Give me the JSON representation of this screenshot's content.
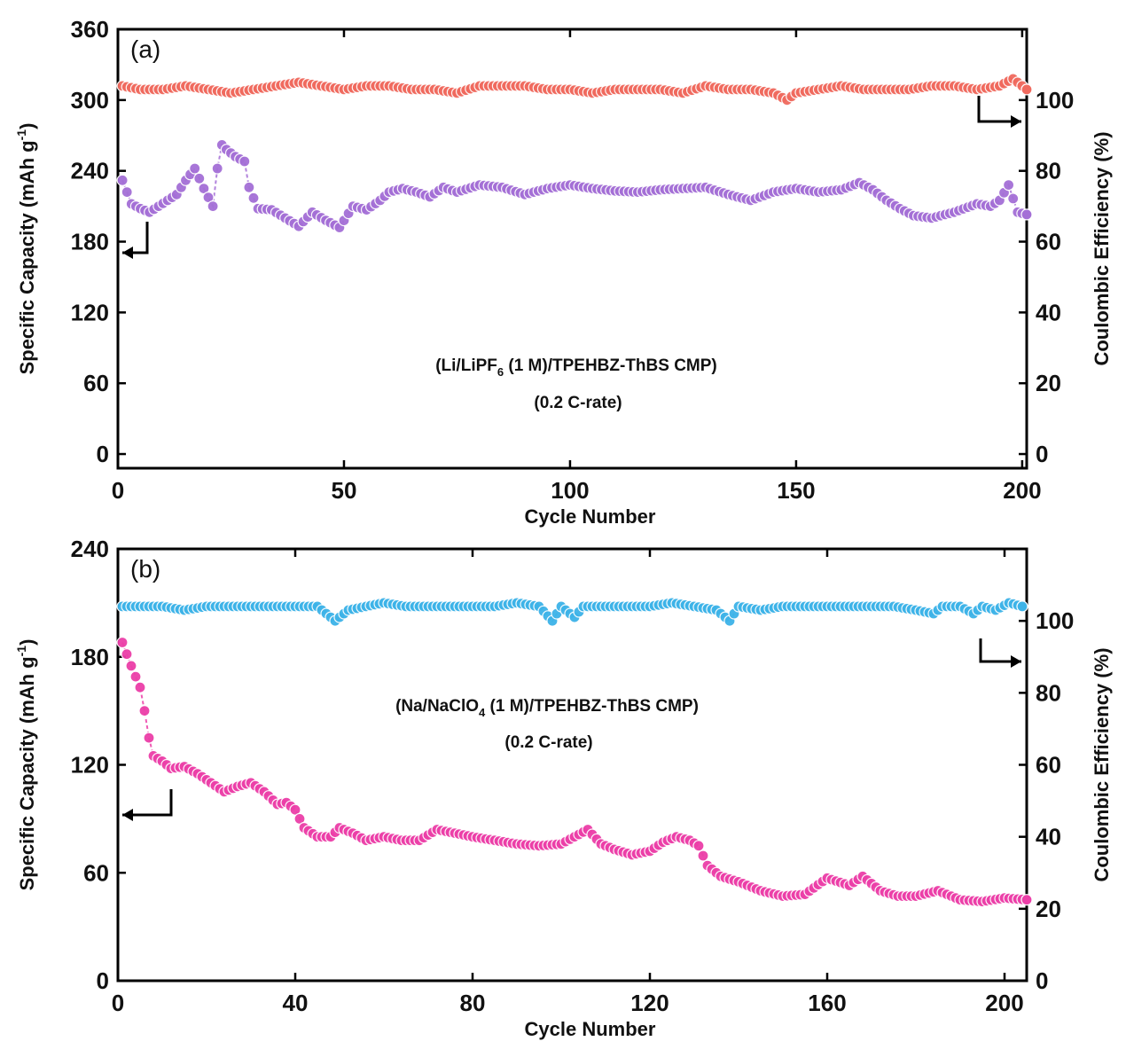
{
  "chart_data": [
    {
      "type": "scatter",
      "panel_label": "(a)",
      "xlabel": "Cycle Number",
      "ylabel": "Specific Capacity (mAh g-1)",
      "ylabel_main": "Specific Capacity (mAh g",
      "ylabel_sup": "-1",
      "ylabel_close": ")",
      "y2label": "Coulombic Efficiency (%)",
      "xlim": [
        0,
        201
      ],
      "ylim": [
        -12,
        360
      ],
      "y2lim": [
        -4,
        120
      ],
      "xticks": [
        "0",
        "50",
        "100",
        "150",
        "200"
      ],
      "yticks": [
        "0",
        "60",
        "120",
        "180",
        "240",
        "300",
        "360"
      ],
      "y2ticks": [
        "0",
        "20",
        "40",
        "60",
        "80",
        "100"
      ],
      "annotation_main": "(Li/LiPF",
      "annotation_sub": "6",
      "annotation_rest": " (1 M)/TPEHBZ-ThBS CMP)",
      "annotation_line2": "(0.2 C-rate)",
      "grid": false,
      "series": [
        {
          "axis": "left",
          "color": "#a46fd6",
          "points": [
            [
              1,
              232
            ],
            [
              3,
              212
            ],
            [
              5,
              208
            ],
            [
              7,
              205
            ],
            [
              9,
              210
            ],
            [
              11,
              215
            ],
            [
              13,
              220
            ],
            [
              15,
              232
            ],
            [
              17,
              242
            ],
            [
              19,
              225
            ],
            [
              21,
              210
            ],
            [
              22,
              242
            ],
            [
              23,
              262
            ],
            [
              24,
              258
            ],
            [
              26,
              252
            ],
            [
              28,
              248
            ],
            [
              29,
              226
            ],
            [
              31,
              208
            ],
            [
              34,
              207
            ],
            [
              37,
              200
            ],
            [
              40,
              193
            ],
            [
              43,
              205
            ],
            [
              46,
              198
            ],
            [
              49,
              192
            ],
            [
              52,
              210
            ],
            [
              55,
              207
            ],
            [
              58,
              215
            ],
            [
              60,
              222
            ],
            [
              63,
              225
            ],
            [
              66,
              222
            ],
            [
              69,
              218
            ],
            [
              72,
              226
            ],
            [
              75,
              222
            ],
            [
              80,
              228
            ],
            [
              85,
              226
            ],
            [
              90,
              220
            ],
            [
              95,
              225
            ],
            [
              100,
              228
            ],
            [
              105,
              225
            ],
            [
              110,
              223
            ],
            [
              115,
              222
            ],
            [
              120,
              224
            ],
            [
              125,
              225
            ],
            [
              130,
              226
            ],
            [
              135,
              220
            ],
            [
              140,
              215
            ],
            [
              145,
              222
            ],
            [
              150,
              225
            ],
            [
              155,
              222
            ],
            [
              160,
              224
            ],
            [
              164,
              230
            ],
            [
              167,
              224
            ],
            [
              170,
              215
            ],
            [
              173,
              208
            ],
            [
              176,
              202
            ],
            [
              180,
              200
            ],
            [
              185,
              205
            ],
            [
              190,
              212
            ],
            [
              193,
              210
            ],
            [
              195,
              215
            ],
            [
              197,
              228
            ],
            [
              199,
              205
            ],
            [
              201,
              203
            ]
          ]
        },
        {
          "axis": "right",
          "color": "#f06a5e",
          "points": [
            [
              1,
              104
            ],
            [
              5,
              103
            ],
            [
              10,
              103
            ],
            [
              15,
              104
            ],
            [
              20,
              103
            ],
            [
              25,
              102
            ],
            [
              30,
              103
            ],
            [
              35,
              104
            ],
            [
              40,
              105
            ],
            [
              45,
              104
            ],
            [
              50,
              103
            ],
            [
              55,
              104
            ],
            [
              60,
              104
            ],
            [
              65,
              103
            ],
            [
              70,
              103
            ],
            [
              75,
              102
            ],
            [
              80,
              104
            ],
            [
              85,
              104
            ],
            [
              90,
              104
            ],
            [
              95,
              103
            ],
            [
              100,
              103
            ],
            [
              105,
              102
            ],
            [
              110,
              103
            ],
            [
              115,
              103
            ],
            [
              120,
              103
            ],
            [
              125,
              102
            ],
            [
              130,
              104
            ],
            [
              135,
              103
            ],
            [
              140,
              103
            ],
            [
              145,
              102
            ],
            [
              148,
              100
            ],
            [
              150,
              102
            ],
            [
              155,
              103
            ],
            [
              160,
              104
            ],
            [
              165,
              103
            ],
            [
              170,
              103
            ],
            [
              175,
              103
            ],
            [
              180,
              104
            ],
            [
              185,
              104
            ],
            [
              190,
              103
            ],
            [
              195,
              104
            ],
            [
              198,
              106
            ],
            [
              201,
              103
            ]
          ]
        }
      ]
    },
    {
      "type": "scatter",
      "panel_label": "(b)",
      "xlabel": "Cycle Number",
      "ylabel": "Specific Capacity (mAh g-1)",
      "ylabel_main": "Specific Capacity (mAh g",
      "ylabel_sup": "-1",
      "ylabel_close": ")",
      "y2label": "Coulombic Efficiency (%)",
      "xlim": [
        0,
        205
      ],
      "ylim": [
        0,
        240
      ],
      "y2lim": [
        0,
        120
      ],
      "xticks": [
        "0",
        "40",
        "80",
        "120",
        "160",
        "200"
      ],
      "yticks": [
        "0",
        "60",
        "120",
        "180",
        "240"
      ],
      "y2ticks": [
        "0",
        "20",
        "40",
        "60",
        "80",
        "100"
      ],
      "annotation_main": "(Na/NaClO",
      "annotation_sub": "4",
      "annotation_rest": " (1 M)/TPEHBZ-ThBS CMP)",
      "annotation_line2": "(0.2 C-rate)",
      "grid": false,
      "series": [
        {
          "axis": "left",
          "color": "#ec3fa8",
          "points": [
            [
              1,
              188
            ],
            [
              3,
              175
            ],
            [
              5,
              163
            ],
            [
              6,
              150
            ],
            [
              7,
              135
            ],
            [
              8,
              125
            ],
            [
              10,
              122
            ],
            [
              12,
              118
            ],
            [
              15,
              119
            ],
            [
              18,
              115
            ],
            [
              21,
              110
            ],
            [
              24,
              105
            ],
            [
              27,
              108
            ],
            [
              30,
              110
            ],
            [
              33,
              105
            ],
            [
              36,
              98
            ],
            [
              38,
              99
            ],
            [
              40,
              95
            ],
            [
              42,
              85
            ],
            [
              45,
              80
            ],
            [
              48,
              80
            ],
            [
              50,
              85
            ],
            [
              53,
              82
            ],
            [
              56,
              78
            ],
            [
              60,
              80
            ],
            [
              64,
              78
            ],
            [
              68,
              78
            ],
            [
              72,
              84
            ],
            [
              76,
              82
            ],
            [
              80,
              80
            ],
            [
              85,
              78
            ],
            [
              90,
              76
            ],
            [
              95,
              75
            ],
            [
              100,
              76
            ],
            [
              103,
              80
            ],
            [
              106,
              84
            ],
            [
              109,
              76
            ],
            [
              112,
              73
            ],
            [
              116,
              70
            ],
            [
              120,
              72
            ],
            [
              123,
              77
            ],
            [
              126,
              80
            ],
            [
              129,
              78
            ],
            [
              131,
              75
            ],
            [
              133,
              64
            ],
            [
              136,
              58
            ],
            [
              140,
              55
            ],
            [
              145,
              50
            ],
            [
              150,
              47
            ],
            [
              155,
              48
            ],
            [
              160,
              57
            ],
            [
              165,
              53
            ],
            [
              168,
              58
            ],
            [
              172,
              50
            ],
            [
              176,
              47
            ],
            [
              180,
              47
            ],
            [
              185,
              50
            ],
            [
              190,
              45
            ],
            [
              195,
              44
            ],
            [
              200,
              46
            ],
            [
              205,
              45
            ]
          ]
        },
        {
          "axis": "right",
          "color": "#3db3e8",
          "points": [
            [
              1,
              104
            ],
            [
              5,
              104
            ],
            [
              10,
              104
            ],
            [
              15,
              103
            ],
            [
              20,
              104
            ],
            [
              25,
              104
            ],
            [
              30,
              104
            ],
            [
              35,
              104
            ],
            [
              40,
              104
            ],
            [
              45,
              104
            ],
            [
              49,
              100
            ],
            [
              52,
              103
            ],
            [
              56,
              104
            ],
            [
              60,
              105
            ],
            [
              65,
              104
            ],
            [
              70,
              104
            ],
            [
              75,
              104
            ],
            [
              80,
              104
            ],
            [
              85,
              104
            ],
            [
              90,
              105
            ],
            [
              95,
              104
            ],
            [
              98,
              100
            ],
            [
              100,
              104
            ],
            [
              103,
              101
            ],
            [
              105,
              104
            ],
            [
              110,
              104
            ],
            [
              115,
              104
            ],
            [
              120,
              104
            ],
            [
              125,
              105
            ],
            [
              130,
              104
            ],
            [
              135,
              103
            ],
            [
              138,
              100
            ],
            [
              140,
              104
            ],
            [
              145,
              103
            ],
            [
              150,
              104
            ],
            [
              155,
              104
            ],
            [
              160,
              104
            ],
            [
              165,
              104
            ],
            [
              170,
              104
            ],
            [
              175,
              104
            ],
            [
              180,
              103
            ],
            [
              184,
              102
            ],
            [
              186,
              104
            ],
            [
              190,
              104
            ],
            [
              193,
              102
            ],
            [
              195,
              104
            ],
            [
              198,
              103
            ],
            [
              201,
              105
            ],
            [
              204,
              104
            ]
          ]
        }
      ]
    }
  ]
}
